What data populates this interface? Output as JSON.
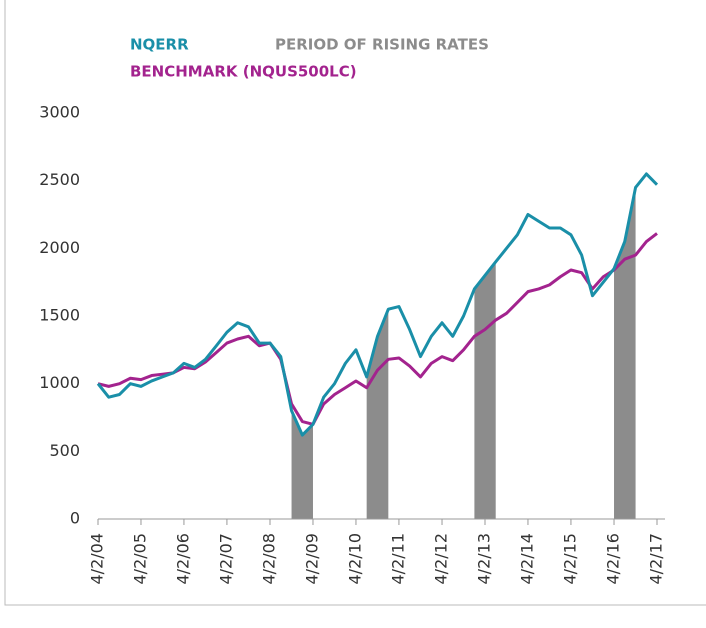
{
  "chart_data": {
    "type": "line",
    "x": [
      "2004-04-02",
      "2004-07-02",
      "2004-10-02",
      "2005-01-02",
      "2005-04-02",
      "2005-07-02",
      "2005-10-02",
      "2006-01-02",
      "2006-04-02",
      "2006-07-02",
      "2006-10-02",
      "2007-01-02",
      "2007-04-02",
      "2007-07-02",
      "2007-10-02",
      "2008-01-02",
      "2008-04-02",
      "2008-07-02",
      "2008-10-02",
      "2009-01-02",
      "2009-04-02",
      "2009-07-02",
      "2009-10-02",
      "2010-01-02",
      "2010-04-02",
      "2010-07-02",
      "2010-10-02",
      "2011-01-02",
      "2011-04-02",
      "2011-07-02",
      "2011-10-02",
      "2012-01-02",
      "2012-04-02",
      "2012-07-02",
      "2012-10-02",
      "2013-01-02",
      "2013-04-02",
      "2013-07-02",
      "2013-10-02",
      "2014-01-02",
      "2014-04-02",
      "2014-07-02",
      "2014-10-02",
      "2015-01-02",
      "2015-04-02",
      "2015-07-02",
      "2015-10-02",
      "2016-01-02",
      "2016-04-02",
      "2016-07-02",
      "2016-10-02",
      "2017-01-02",
      "2017-04-02"
    ],
    "series": [
      {
        "name": "NQERR",
        "color": "#1a8fa8",
        "values": [
          1000,
          900,
          920,
          1000,
          980,
          1020,
          1050,
          1080,
          1150,
          1120,
          1180,
          1280,
          1380,
          1450,
          1420,
          1300,
          1300,
          1200,
          800,
          620,
          700,
          900,
          1000,
          1150,
          1250,
          1050,
          1350,
          1550,
          1570,
          1400,
          1200,
          1350,
          1450,
          1350,
          1500,
          1700,
          1800,
          1900,
          2000,
          2100,
          2250,
          2200,
          2150,
          2150,
          2100,
          1950,
          1650,
          1750,
          1850,
          2050,
          2450,
          2550,
          2470
        ]
      },
      {
        "name": "BENCHMARK (NQUS500LC)",
        "color": "#a3238e",
        "values": [
          1000,
          980,
          1000,
          1040,
          1030,
          1060,
          1070,
          1080,
          1120,
          1110,
          1160,
          1230,
          1300,
          1330,
          1350,
          1280,
          1300,
          1180,
          850,
          720,
          700,
          850,
          920,
          970,
          1020,
          970,
          1100,
          1180,
          1190,
          1130,
          1050,
          1150,
          1200,
          1170,
          1250,
          1350,
          1400,
          1470,
          1520,
          1600,
          1680,
          1700,
          1730,
          1790,
          1840,
          1820,
          1700,
          1790,
          1840,
          1920,
          1950,
          2050,
          2110
        ]
      }
    ],
    "periods": {
      "name": "PERIOD OF RISING RATES",
      "color": "#8c8c8c",
      "ranges": [
        {
          "start": "2008-10-02",
          "end": "2009-04-02"
        },
        {
          "start": "2010-07-02",
          "end": "2011-01-02"
        },
        {
          "start": "2013-01-02",
          "end": "2013-07-02"
        },
        {
          "start": "2016-04-02",
          "end": "2016-10-02"
        }
      ]
    },
    "ylim": [
      0,
      3000
    ],
    "yticks": [
      0,
      500,
      1000,
      1500,
      2000,
      2500,
      3000
    ],
    "xticks": [
      {
        "value": "2004-04-02",
        "label": "4/2/04"
      },
      {
        "value": "2005-04-02",
        "label": "4/2/05"
      },
      {
        "value": "2006-04-02",
        "label": "4/2/06"
      },
      {
        "value": "2007-04-02",
        "label": "4/2/07"
      },
      {
        "value": "2008-04-02",
        "label": "4/2/08"
      },
      {
        "value": "2009-04-02",
        "label": "4/2/09"
      },
      {
        "value": "2010-04-02",
        "label": "4/2/10"
      },
      {
        "value": "2011-04-02",
        "label": "4/2/11"
      },
      {
        "value": "2012-04-02",
        "label": "4/2/12"
      },
      {
        "value": "2013-04-02",
        "label": "4/2/13"
      },
      {
        "value": "2014-04-02",
        "label": "4/2/14"
      },
      {
        "value": "2015-04-02",
        "label": "4/2/15"
      },
      {
        "value": "2016-04-02",
        "label": "4/2/16"
      },
      {
        "value": "2017-04-02",
        "label": "4/2/17"
      }
    ],
    "grid": false
  }
}
